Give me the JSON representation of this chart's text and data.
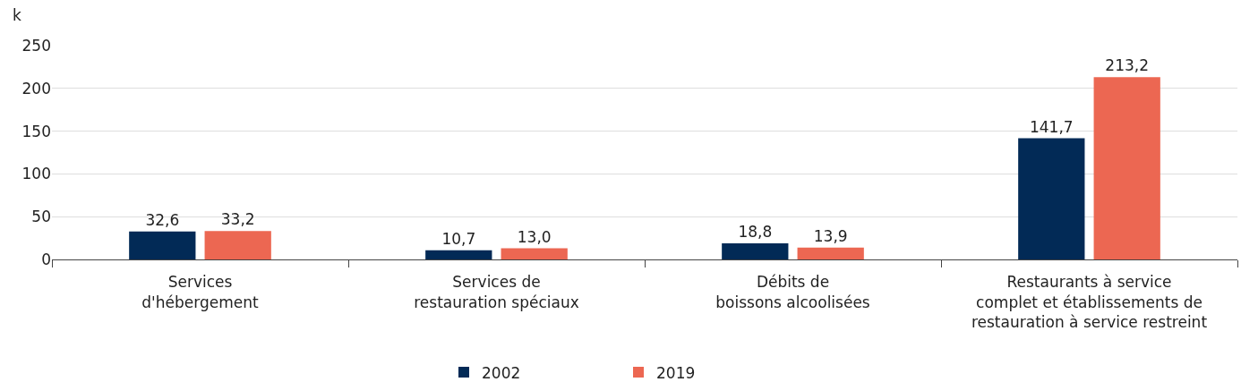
{
  "chart_data": {
    "type": "bar",
    "ylabel": "k",
    "categories": [
      "Services\nd'hébergement",
      "Services de\nrestauration spéciaux",
      "Débits de\nboissons alcoolisées",
      "Restaurants à service\ncomplet et établissements de\nrestauration à service restreint"
    ],
    "series": [
      {
        "name": "2002",
        "color": "#022a56",
        "values": [
          32.6,
          10.7,
          18.8,
          141.7
        ],
        "value_labels": [
          "32,6",
          "10,7",
          "18,8",
          "141,7"
        ]
      },
      {
        "name": "2019",
        "color": "#ec6752",
        "values": [
          33.2,
          13.0,
          13.9,
          213.2
        ],
        "value_labels": [
          "33,2",
          "13,0",
          "13,9",
          "213,2"
        ]
      }
    ],
    "ylim": [
      0,
      250
    ],
    "yticks": [
      0,
      50,
      100,
      150,
      200,
      250
    ],
    "grid": "y",
    "legend": "bottom"
  }
}
